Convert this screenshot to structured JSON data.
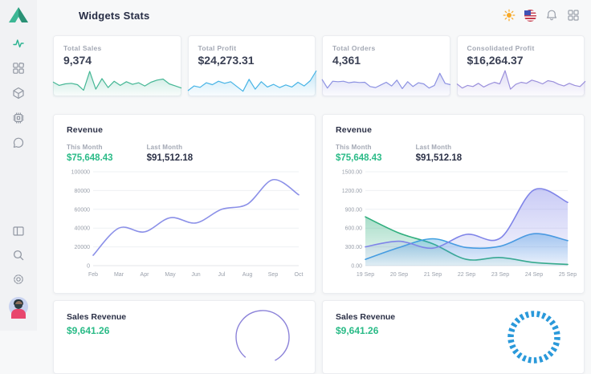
{
  "app": {
    "title": "Widgets Stats"
  },
  "sidebar": {
    "items": [
      "activity",
      "widgets",
      "package",
      "cpu",
      "chat",
      "layout",
      "search",
      "settings",
      "profile"
    ]
  },
  "stat_cards": [
    {
      "label": "Total Sales",
      "value": "9,374"
    },
    {
      "label": "Total Profit",
      "value": "$24,273.31"
    },
    {
      "label": "Total Orders",
      "value": "4,361"
    },
    {
      "label": "Consolidated Profit",
      "value": "$16,264.37"
    }
  ],
  "revenue_cards": [
    {
      "title": "Revenue",
      "this_month_label": "This Month",
      "this_month_value": "$75,648.43",
      "last_month_label": "Last Month",
      "last_month_value": "$91,512.18"
    },
    {
      "title": "Revenue",
      "this_month_label": "This Month",
      "this_month_value": "$75,648.43",
      "last_month_label": "Last Month",
      "last_month_value": "$91,512.18"
    }
  ],
  "sales_cards": [
    {
      "title": "Sales Revenue",
      "value": "$9,641.26"
    },
    {
      "title": "Sales Revenue",
      "value": "$9,641.26"
    }
  ],
  "colors": {
    "accent_teal": "#2bb390",
    "money_green": "#2abb87",
    "spark_green": "#45b795",
    "spark_blue": "#47b4e6",
    "spark_purple": "#8d92e2",
    "line_purple": "#8b90e8",
    "dark_text": "#2a2f45",
    "muted_text": "#a3a8b4"
  },
  "chart_data": [
    {
      "type": "spark",
      "name": "total-sales-sparkline",
      "color": "#45b795",
      "values": [
        45,
        32,
        38,
        40,
        35,
        14,
        85,
        18,
        58,
        24,
        48,
        32,
        46,
        36,
        42,
        30,
        44,
        52,
        56,
        38,
        30,
        22
      ]
    },
    {
      "type": "spark",
      "name": "total-profit-sparkline",
      "color": "#47b4e6",
      "values": [
        12,
        30,
        25,
        42,
        35,
        48,
        40,
        46,
        28,
        10,
        55,
        18,
        46,
        26,
        36,
        24,
        34,
        26,
        44,
        30,
        50,
        88
      ]
    },
    {
      "type": "spark",
      "name": "total-orders-sparkline",
      "color": "#8d92e2",
      "values": [
        55,
        22,
        48,
        46,
        48,
        42,
        45,
        43,
        44,
        28,
        24,
        34,
        44,
        30,
        52,
        20,
        46,
        28,
        42,
        38,
        22,
        32,
        78,
        40,
        35
      ]
    },
    {
      "type": "spark",
      "name": "consolidated-profit-sparkline",
      "color": "#9b90dc",
      "values": [
        38,
        22,
        32,
        28,
        40,
        26,
        36,
        44,
        38,
        88,
        18,
        36,
        44,
        40,
        52,
        46,
        38,
        50,
        46,
        36,
        30,
        40,
        32,
        28,
        48
      ]
    },
    {
      "type": "line",
      "name": "revenue-by-month",
      "title": "Revenue",
      "categories": [
        "Feb",
        "Mar",
        "Apr",
        "May",
        "Jun",
        "Jul",
        "Aug",
        "Sep",
        "Oct"
      ],
      "series": [
        {
          "name": "Revenue",
          "color": "#8b90e8",
          "values": [
            11000,
            40000,
            36000,
            51000,
            45500,
            60000,
            65500,
            91500,
            75500
          ]
        }
      ],
      "ylim": [
        0,
        100000
      ],
      "ytick_labels": [
        "0",
        "20000",
        "40000",
        "60000",
        "80000",
        "100000"
      ],
      "grid": true,
      "legend": "none"
    },
    {
      "type": "area",
      "name": "revenue-by-day",
      "title": "Revenue",
      "categories": [
        "19 Sep",
        "20 Sep",
        "21 Sep",
        "22 Sep",
        "23 Sep",
        "24 Sep",
        "25 Sep"
      ],
      "series": [
        {
          "name": "green-series",
          "color": "#2fae7d",
          "values": [
            780,
            520,
            350,
            100,
            130,
            50,
            20
          ]
        },
        {
          "name": "blue-series",
          "color": "#3d9fe0",
          "values": [
            100,
            290,
            430,
            290,
            310,
            510,
            400
          ]
        },
        {
          "name": "purple-series",
          "color": "#7f84e8",
          "values": [
            300,
            390,
            280,
            500,
            440,
            1210,
            1010
          ]
        }
      ],
      "ylim": [
        0,
        1500
      ],
      "ytick_labels": [
        "0.00",
        "300.00",
        "600.00",
        "900.00",
        "1200.00",
        "1500.00"
      ],
      "grid": true,
      "legend": "none"
    }
  ]
}
